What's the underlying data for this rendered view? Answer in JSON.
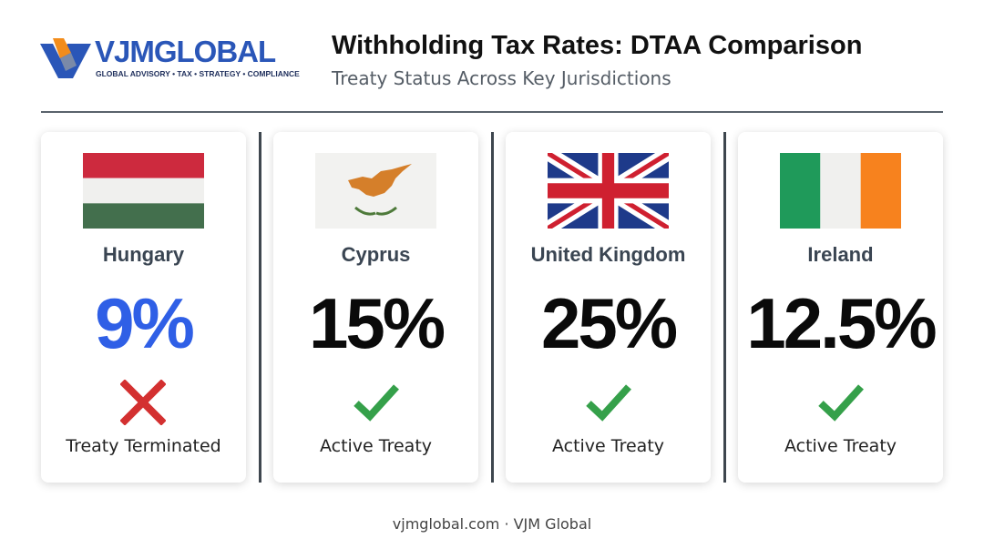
{
  "header": {
    "logo": "VJMGLOBAL",
    "tagline": "GLOBAL ADVISORY • TAX • STRATEGY • COMPLIANCE",
    "title": "Withholding Tax Rates: DTAA Comparison",
    "subtitle": "Treaty Status Across Key Jurisdictions"
  },
  "cards": [
    {
      "country": "Hungary",
      "rate": "9%",
      "status": "Treaty Terminated"
    },
    {
      "country": "Cyprus",
      "rate": "15%",
      "status": "Active Treaty"
    },
    {
      "country": "United Kingdom",
      "rate": "25%",
      "status": "Active Treaty"
    },
    {
      "country": "Ireland",
      "rate": "12.5%",
      "status": "Active Treaty"
    }
  ],
  "footer": "vjmglobal.com · VJM Global"
}
